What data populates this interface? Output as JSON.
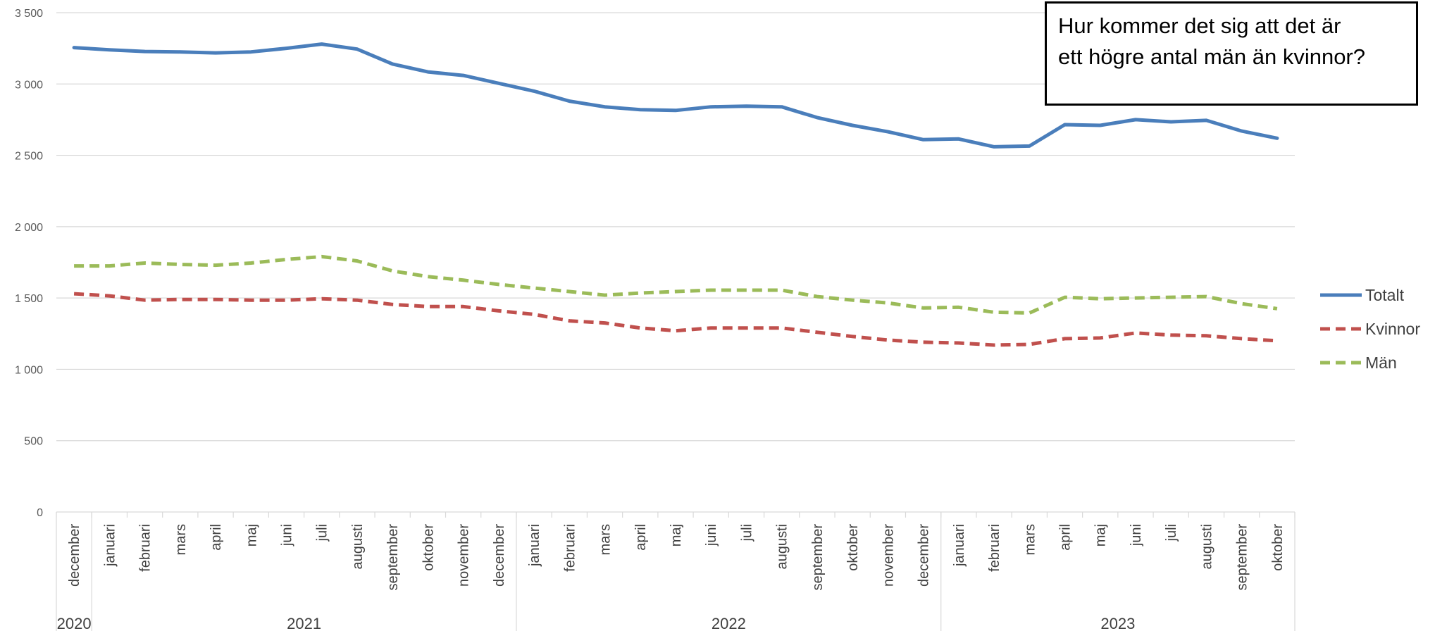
{
  "chart_data": {
    "type": "line",
    "months": [
      "december",
      "januari",
      "februari",
      "mars",
      "april",
      "maj",
      "juni",
      "juli",
      "augusti",
      "september",
      "oktober",
      "november",
      "december",
      "januari",
      "februari",
      "mars",
      "april",
      "maj",
      "juni",
      "juli",
      "augusti",
      "september",
      "oktober",
      "november",
      "december",
      "januari",
      "februari",
      "mars",
      "april",
      "maj",
      "juni",
      "juli",
      "augusti",
      "september",
      "oktober"
    ],
    "years": [
      {
        "label": "2020",
        "start": 0,
        "end": 0
      },
      {
        "label": "2021",
        "start": 1,
        "end": 12
      },
      {
        "label": "2022",
        "start": 13,
        "end": 24
      },
      {
        "label": "2023",
        "start": 25,
        "end": 34
      }
    ],
    "y_ticks": [
      "0",
      "500",
      "1 000",
      "1 500",
      "2 000",
      "2 500",
      "3 000",
      "3 500"
    ],
    "ylim": [
      0,
      3500
    ],
    "grid": true,
    "legend_position": "right",
    "series": [
      {
        "name": "Totalt",
        "color": "#4a7ebb",
        "style": "solid",
        "values": [
          3255,
          3240,
          3228,
          3225,
          3218,
          3225,
          3250,
          3280,
          3245,
          3140,
          3085,
          3060,
          3005,
          2950,
          2880,
          2840,
          2820,
          2815,
          2840,
          2845,
          2840,
          2765,
          2710,
          2665,
          2610,
          2615,
          2560,
          2565,
          2715,
          2710,
          2750,
          2735,
          2745,
          2670,
          2620
        ]
      },
      {
        "name": "Kvinnor",
        "color": "#c0504d",
        "style": "dashed",
        "values": [
          1530,
          1515,
          1485,
          1490,
          1490,
          1485,
          1485,
          1495,
          1485,
          1455,
          1440,
          1440,
          1410,
          1385,
          1340,
          1325,
          1290,
          1270,
          1290,
          1290,
          1290,
          1260,
          1230,
          1205,
          1190,
          1185,
          1170,
          1175,
          1215,
          1220,
          1255,
          1240,
          1235,
          1215,
          1200
        ]
      },
      {
        "name": "Män",
        "color": "#9bbb59",
        "style": "dashed",
        "values": [
          1725,
          1725,
          1745,
          1735,
          1730,
          1745,
          1770,
          1790,
          1760,
          1690,
          1650,
          1625,
          1595,
          1570,
          1545,
          1520,
          1535,
          1545,
          1555,
          1555,
          1555,
          1510,
          1485,
          1465,
          1430,
          1435,
          1400,
          1395,
          1505,
          1495,
          1500,
          1505,
          1510,
          1460,
          1425
        ]
      }
    ]
  },
  "callout": {
    "line1": "Hur kommer det sig att det är",
    "line2": "ett högre antal män än kvinnor?"
  }
}
